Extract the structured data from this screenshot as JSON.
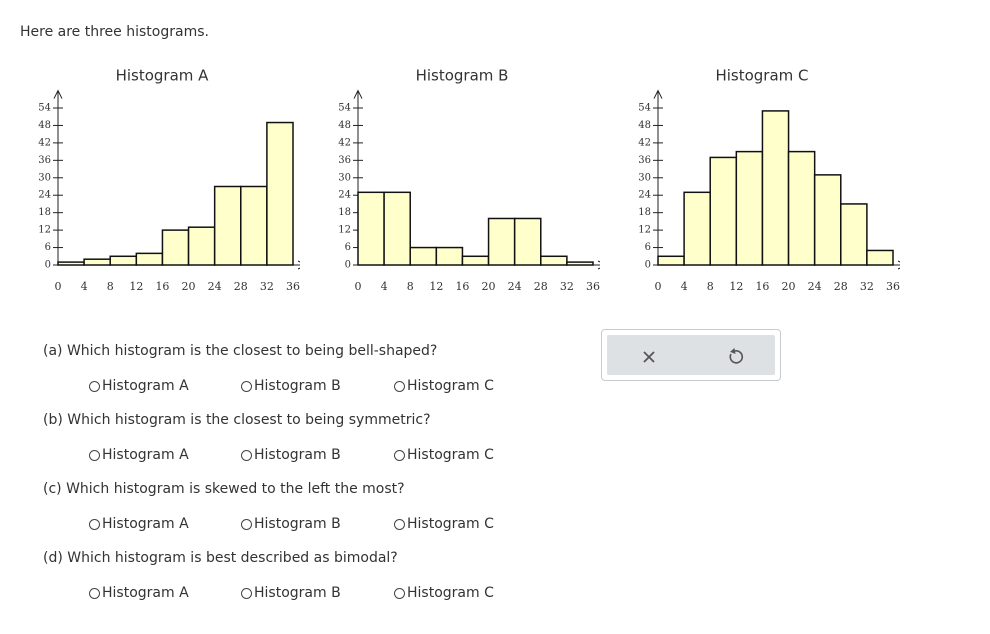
{
  "intro": "Here are three histograms.",
  "chart_data": [
    {
      "type": "histogram",
      "title": "Histogram A",
      "bins": [
        0,
        4,
        8,
        12,
        16,
        20,
        24,
        28,
        32,
        36
      ],
      "values": [
        1,
        2,
        3,
        4,
        12,
        13,
        27,
        27,
        49
      ],
      "color": "#ffffcc",
      "xlim": [
        0,
        38
      ],
      "ylim": [
        0,
        60
      ],
      "xticks": [
        0,
        4,
        8,
        12,
        16,
        20,
        24,
        28,
        32,
        36
      ],
      "yticks": [
        0,
        6,
        12,
        18,
        24,
        30,
        36,
        42,
        48,
        54
      ]
    },
    {
      "type": "histogram",
      "title": "Histogram B",
      "bins": [
        0,
        4,
        8,
        12,
        16,
        20,
        24,
        28,
        32,
        36
      ],
      "values": [
        25,
        25,
        6,
        6,
        3,
        16,
        16,
        3,
        1
      ],
      "color": "#ffffcc",
      "xlim": [
        0,
        38
      ],
      "ylim": [
        0,
        60
      ],
      "xticks": [
        0,
        4,
        8,
        12,
        16,
        20,
        24,
        28,
        32,
        36
      ],
      "yticks": [
        0,
        6,
        12,
        18,
        24,
        30,
        36,
        42,
        48,
        54
      ]
    },
    {
      "type": "histogram",
      "title": "Histogram C",
      "bins": [
        0,
        4,
        8,
        12,
        16,
        20,
        24,
        28,
        32,
        36
      ],
      "values": [
        3,
        25,
        37,
        39,
        53,
        39,
        31,
        21,
        5
      ],
      "color": "#ffffcc",
      "xlim": [
        0,
        38
      ],
      "ylim": [
        0,
        60
      ],
      "xticks": [
        0,
        4,
        8,
        12,
        16,
        20,
        24,
        28,
        32,
        36
      ],
      "yticks": [
        0,
        6,
        12,
        18,
        24,
        30,
        36,
        42,
        48,
        54
      ]
    }
  ],
  "questions": [
    {
      "text": "(a) Which histogram is the closest to being bell-shaped?",
      "options": [
        "Histogram A",
        "Histogram B",
        "Histogram C"
      ]
    },
    {
      "text": "(b) Which histogram is the closest to being symmetric?",
      "options": [
        "Histogram A",
        "Histogram B",
        "Histogram C"
      ]
    },
    {
      "text": "(c) Which histogram is skewed to the left the most?",
      "options": [
        "Histogram A",
        "Histogram B",
        "Histogram C"
      ]
    },
    {
      "text": "(d) Which histogram is best described as bimodal?",
      "options": [
        "Histogram A",
        "Histogram B",
        "Histogram C"
      ]
    }
  ]
}
